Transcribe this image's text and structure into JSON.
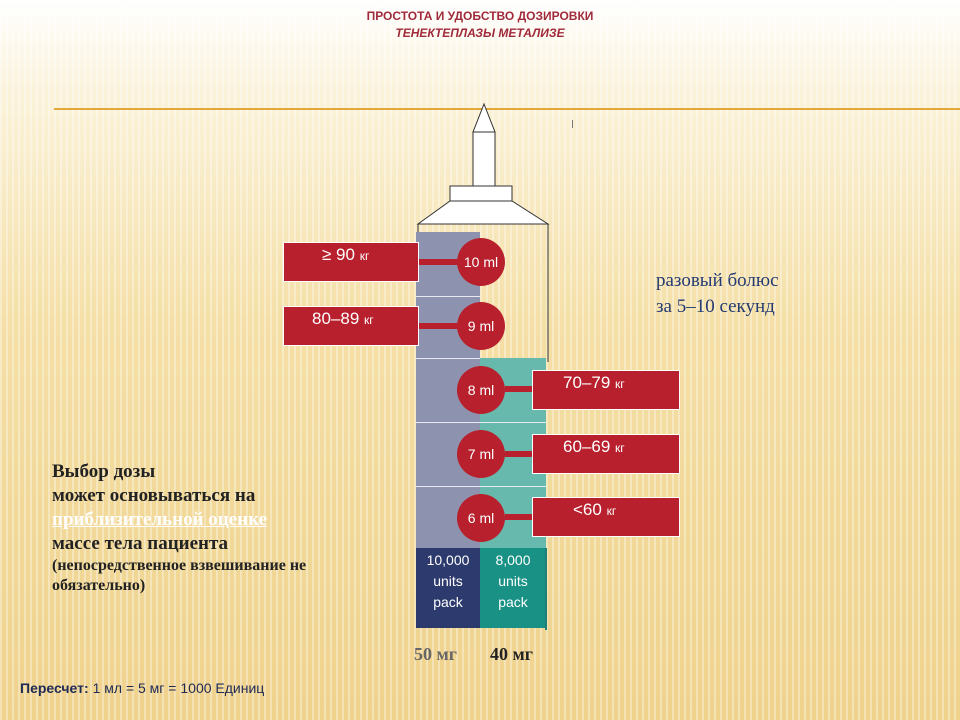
{
  "title": {
    "line1": "ПРОСТОТА И УДОБСТВО ДОЗИРОВКИ",
    "line2": "ТЕНЕКТЕПЛАЗЫ МЕТАЛИЗЕ"
  },
  "doses": [
    {
      "ml": "10 ml",
      "weight": "≥ 90",
      "unit": "кг"
    },
    {
      "ml": "9 ml",
      "weight": "80–89",
      "unit": "кг"
    },
    {
      "ml": "8 ml",
      "weight": "70–79",
      "unit": "кг"
    },
    {
      "ml": "7 ml",
      "weight": "60–69",
      "unit": "кг"
    },
    {
      "ml": "6 ml",
      "weight": "<60",
      "unit": "кг"
    }
  ],
  "packs": {
    "left": {
      "line1": "10,000",
      "line2": "units",
      "line3": "pack",
      "mg": "50 мг"
    },
    "right": {
      "line1": "8,000",
      "line2": "units",
      "line3": "pack",
      "mg": "40 мг"
    }
  },
  "bolus": {
    "line1": "разовый болюс",
    "line2": "за 5–10 секунд"
  },
  "choice": {
    "line1": "Выбор дозы",
    "line2": "может основываться на",
    "line3": "приблизительной оценке",
    "line4": "массе тела пациента",
    "line5": "(непосредственное взвешивание не",
    "line6": "обязательно)"
  },
  "recalc": {
    "label": "Пересчет:",
    "text": "1 мл = 5 мг = 1000 Единиц"
  },
  "colors": {
    "red": "#b7202c",
    "navy": "#2d3a6e",
    "teal": "#199185",
    "grey_blue": "#8d93ae",
    "light_teal": "#67b9ad",
    "accent_line": "#e4a73c"
  }
}
